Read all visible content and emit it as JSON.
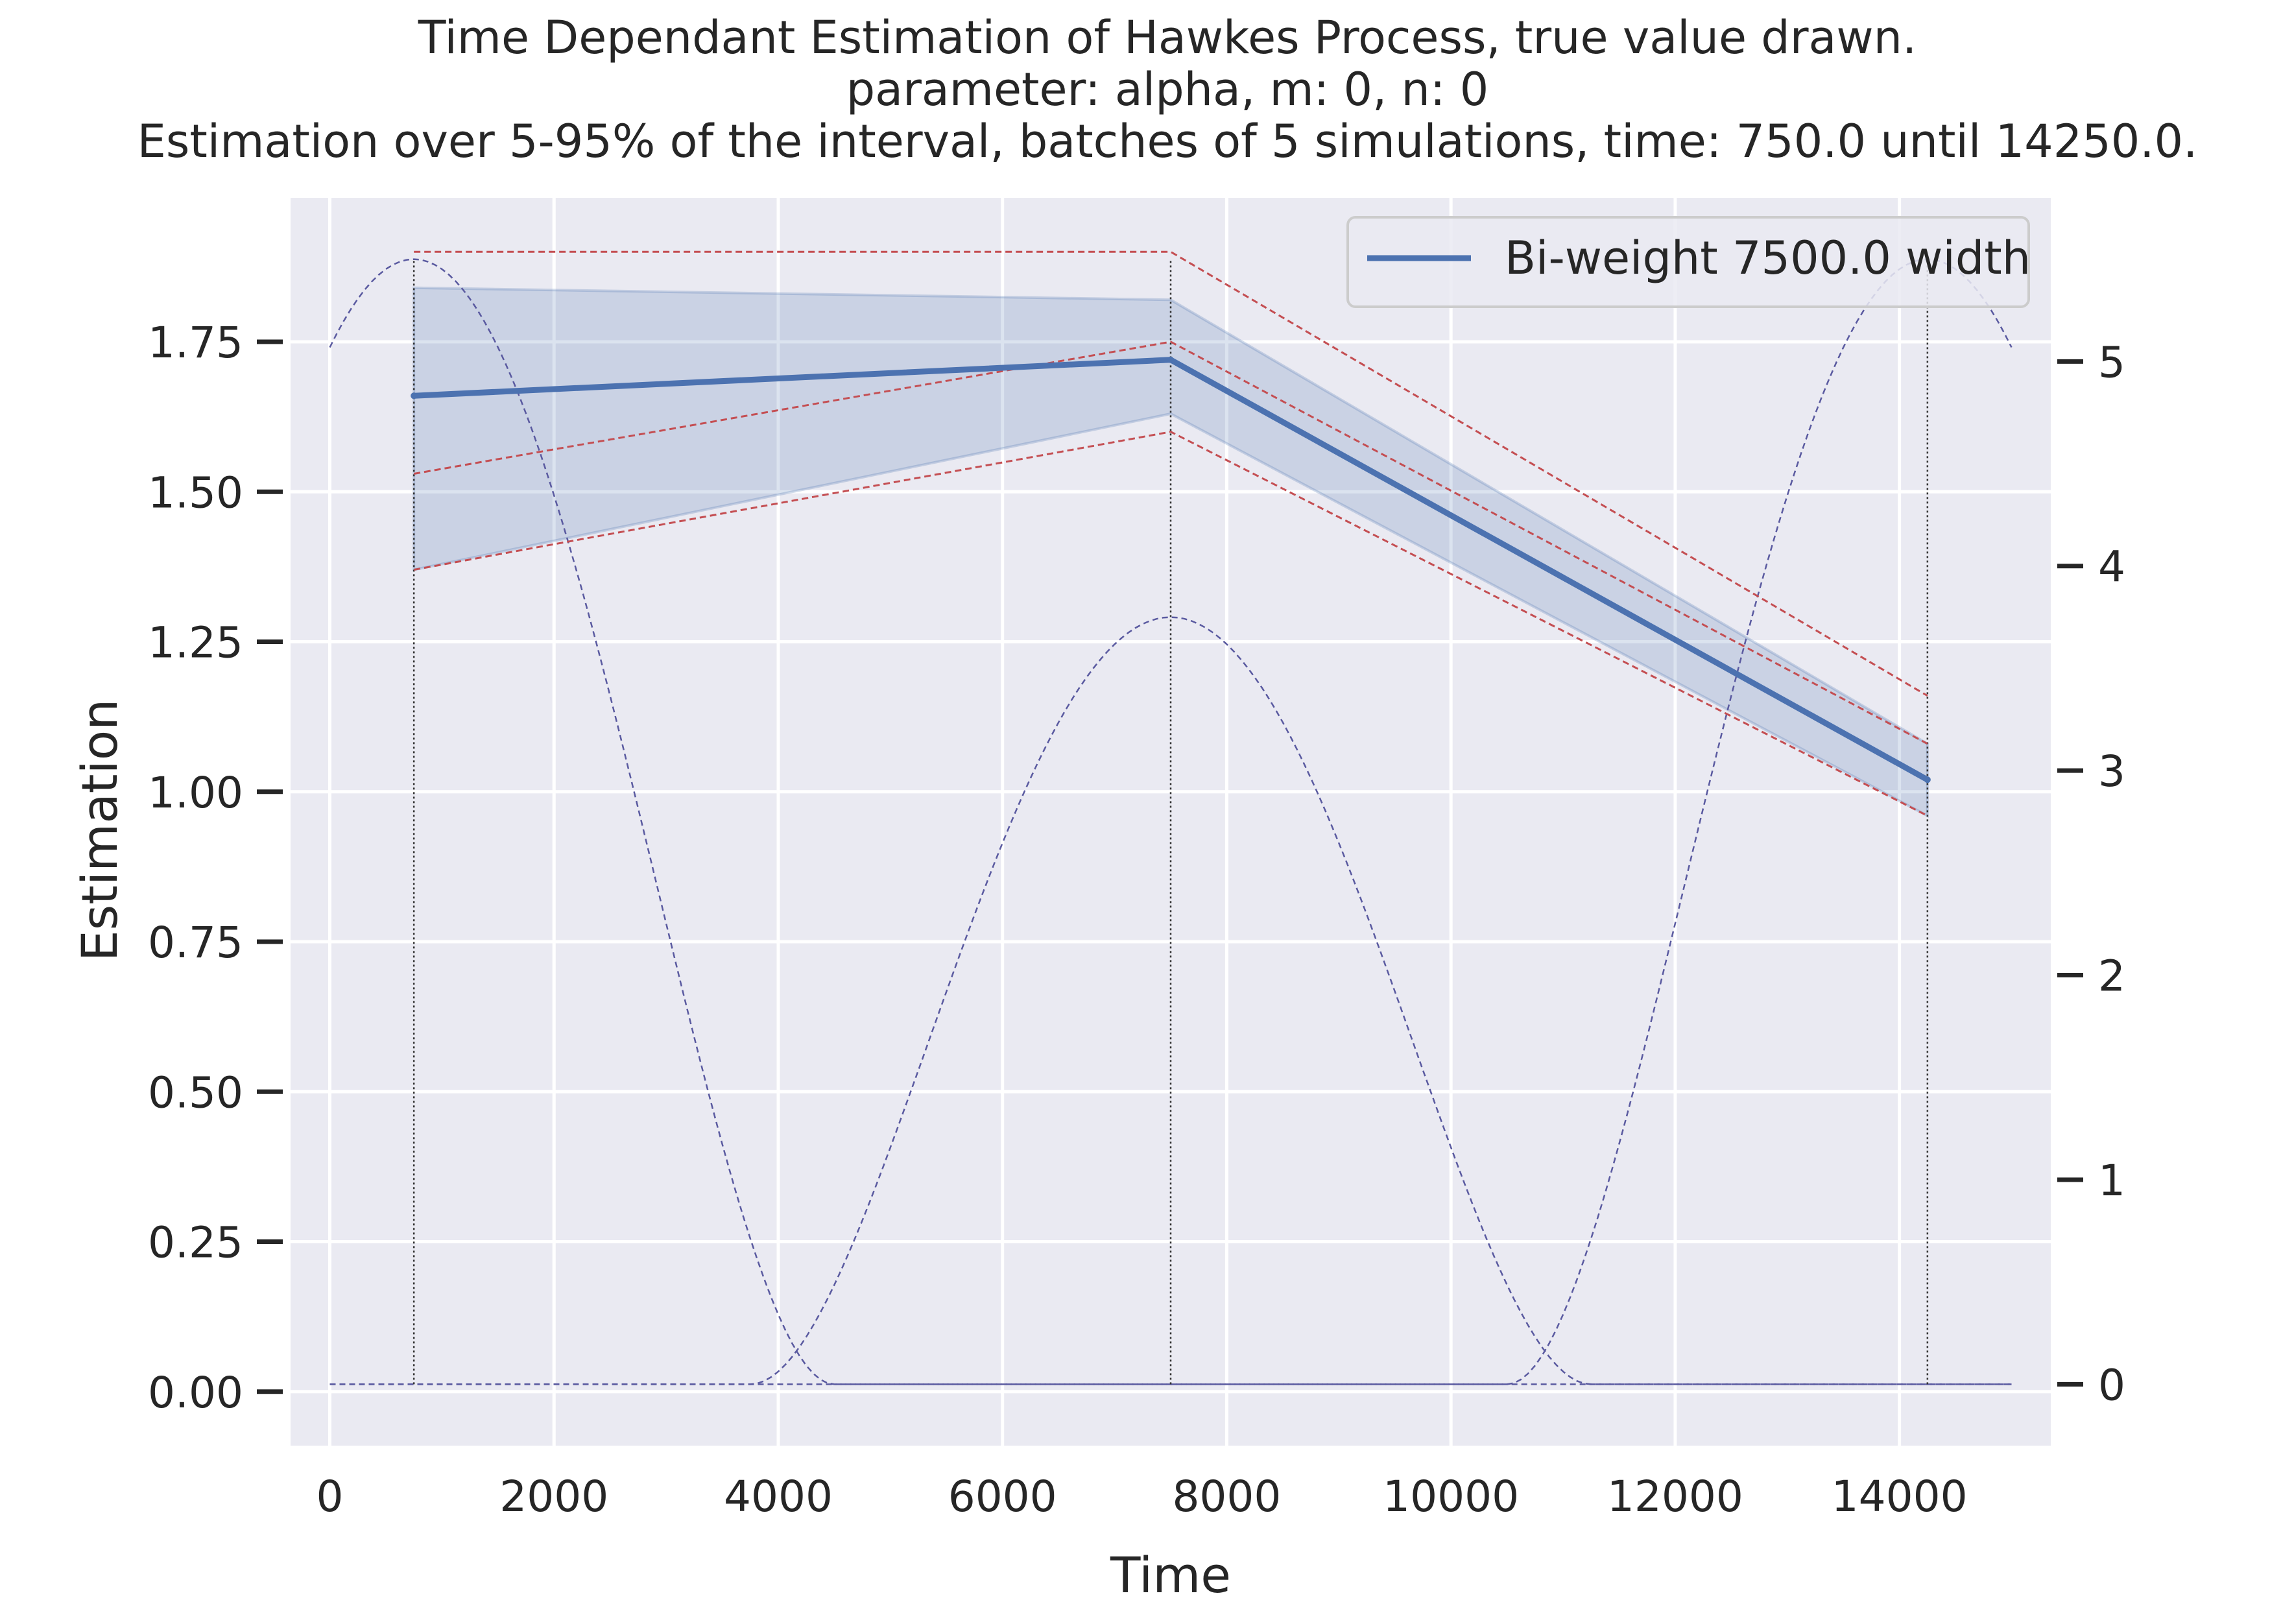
{
  "chart_data": {
    "type": "line",
    "title_lines": [
      "Time Dependant Estimation of Hawkes Process, true value drawn.",
      "parameter: alpha, m: 0, n: 0",
      "Estimation over 5-95% of the interval, batches of 5 simulations, time: 750.0 until 14250.0."
    ],
    "xlabel": "Time",
    "ylabel": "Estimation",
    "xlim": [
      -350,
      15350
    ],
    "ylim": [
      -0.09,
      1.99
    ],
    "y2lim": [
      -0.3,
      5.8
    ],
    "xticks": [
      0,
      2000,
      4000,
      6000,
      8000,
      10000,
      12000,
      14000
    ],
    "xtick_labels": [
      "0",
      "2000",
      "4000",
      "6000",
      "8000",
      "10000",
      "12000",
      "14000"
    ],
    "yticks": [
      0.0,
      0.25,
      0.5,
      0.75,
      1.0,
      1.25,
      1.5,
      1.75
    ],
    "ytick_labels": [
      "0.00",
      "0.25",
      "0.50",
      "0.75",
      "1.00",
      "1.25",
      "1.50",
      "1.75"
    ],
    "y2ticks": [
      0,
      1,
      2,
      3,
      4,
      5
    ],
    "y2tick_labels": [
      "0",
      "1",
      "2",
      "3",
      "4",
      "5"
    ],
    "grid": true,
    "legend_position": "top-right",
    "series": [
      {
        "name": "Bi-weight 7500.0 width",
        "color": "#4c72b0",
        "x": [
          750,
          7500,
          14250
        ],
        "y": [
          1.66,
          1.72,
          1.02
        ],
        "band_upper": [
          1.84,
          1.82,
          1.08
        ],
        "band_lower": [
          1.37,
          1.63,
          0.96
        ]
      }
    ],
    "true_value_lines": {
      "color": "#c44e52",
      "style": "dashed",
      "lines": [
        {
          "x": [
            750,
            7500,
            14250
          ],
          "y": [
            1.9,
            1.9,
            1.16
          ]
        },
        {
          "x": [
            750,
            7500,
            14250
          ],
          "y": [
            1.53,
            1.75,
            1.08
          ]
        },
        {
          "x": [
            750,
            7500,
            14250
          ],
          "y": [
            1.37,
            1.6,
            0.96
          ]
        }
      ]
    },
    "kernel_curves": {
      "axis": "right",
      "color": "#5a5aa0",
      "style": "dashed",
      "peak": 5.5,
      "half_width": 3750,
      "centers": [
        750,
        14250
      ],
      "center_peak": 3.75,
      "center_peak_x": 7500,
      "x_range": [
        0,
        15000
      ]
    },
    "vertical_markers": {
      "color": "#333333",
      "style": "dotted",
      "x": [
        750,
        7500,
        14250
      ]
    }
  }
}
